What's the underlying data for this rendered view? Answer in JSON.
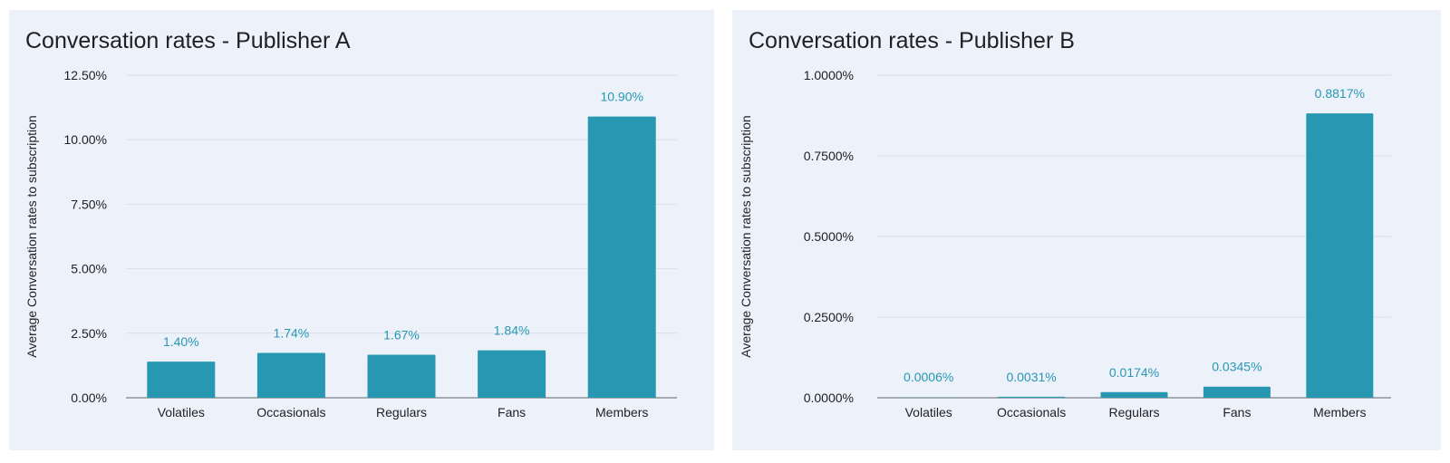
{
  "chart_data": [
    {
      "type": "bar",
      "title": "Conversation rates - Publisher A",
      "ylabel": "Average Conversation rates to subscription",
      "xlabel": "",
      "categories": [
        "Volatiles",
        "Occasionals",
        "Regulars",
        "Fans",
        "Members"
      ],
      "series": [
        {
          "values": [
            1.4,
            1.74,
            1.67,
            1.84,
            10.9
          ],
          "data_labels": [
            "1.40%",
            "1.74%",
            "1.67%",
            "1.84%",
            "10.90%"
          ]
        }
      ],
      "ylim": [
        0,
        12.5
      ],
      "yticks": [
        0,
        2.5,
        5,
        7.5,
        10,
        12.5
      ],
      "ytick_labels": [
        "0.00%",
        "2.50%",
        "5.00%",
        "7.50%",
        "10.00%",
        "12.50%"
      ],
      "grid": true,
      "bar_color": "#2797b2",
      "label_color": "#2797b2"
    },
    {
      "type": "bar",
      "title": "Conversation rates - Publisher B",
      "ylabel": "Average Conversation rates to subscription",
      "xlabel": "",
      "categories": [
        "Volatiles",
        "Occasionals",
        "Regulars",
        "Fans",
        "Members"
      ],
      "series": [
        {
          "values": [
            0.0006,
            0.0031,
            0.0174,
            0.0345,
            0.8817
          ],
          "data_labels": [
            "0.0006%",
            "0.0031%",
            "0.0174%",
            "0.0345%",
            "0.8817%"
          ]
        }
      ],
      "ylim": [
        0,
        1.0
      ],
      "yticks": [
        0,
        0.25,
        0.5,
        0.75,
        1.0
      ],
      "ytick_labels": [
        "0.0000%",
        "0.2500%",
        "0.5000%",
        "0.7500%",
        "1.0000%"
      ],
      "grid": true,
      "bar_color": "#2797b2",
      "label_color": "#2797b2"
    }
  ]
}
